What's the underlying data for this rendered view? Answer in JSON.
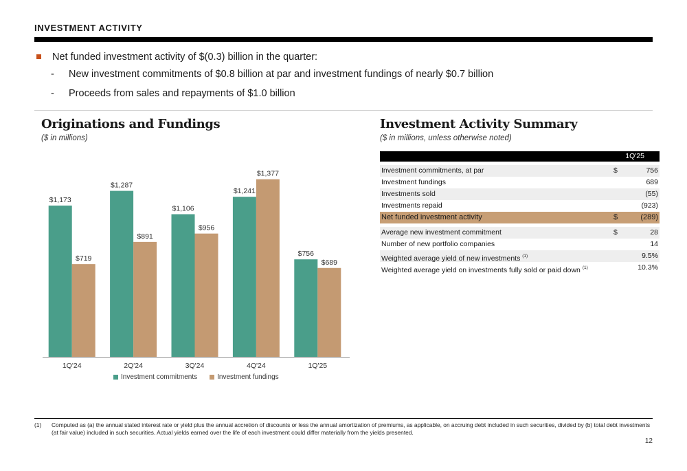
{
  "header": {
    "title": "INVESTMENT ACTIVITY"
  },
  "bullets": {
    "main": "Net funded investment activity of $(0.3) billion in the quarter:",
    "sub": [
      "New investment commitments of $0.8 billion at par and investment fundings of nearly $0.7 billion",
      "Proceeds from sales and repayments of $1.0 billion"
    ],
    "dash": "-"
  },
  "left_panel": {
    "title": "Originations and Fundings",
    "subtitle": "($ in millions)"
  },
  "right_panel": {
    "title": "Investment Activity Summary",
    "subtitle": "($ in millions, unless otherwise noted)"
  },
  "chart_data": {
    "type": "bar",
    "categories": [
      "1Q'24",
      "2Q'24",
      "3Q'24",
      "4Q'24",
      "1Q'25"
    ],
    "series": [
      {
        "name": "Investment commitments",
        "values": [
          1173,
          1287,
          1106,
          1241,
          756
        ],
        "labels": [
          "$1,173",
          "$1,287",
          "$1,106",
          "$1,241",
          "$756"
        ],
        "color": "#4a9e8a"
      },
      {
        "name": "Investment fundings",
        "values": [
          719,
          891,
          956,
          1377,
          689
        ],
        "labels": [
          "$719",
          "$891",
          "$956",
          "$1,377",
          "$689"
        ],
        "color": "#c49a72"
      }
    ],
    "ylim": [
      0,
      1450
    ],
    "grid": false,
    "legend": "bottom"
  },
  "table": {
    "column_header": "1Q'25",
    "rows": [
      {
        "label": "Investment commitments, at par",
        "dollar": "$",
        "value": "756",
        "shade": true
      },
      {
        "label": "Investment fundings",
        "dollar": "",
        "value": "689",
        "shade": false
      },
      {
        "label": "Investments sold",
        "dollar": "",
        "value": "(55)",
        "shade": true
      },
      {
        "label": "Investments repaid",
        "dollar": "",
        "value": "(923)",
        "shade": false
      },
      {
        "label": "Net funded investment activity",
        "dollar": "$",
        "value": "(289)",
        "highlight": true
      }
    ],
    "rows2": [
      {
        "label": "Average new investment commitment",
        "dollar": "$",
        "value": "28",
        "shade": true,
        "sup": ""
      },
      {
        "label": "Number of new portfolio companies",
        "dollar": "",
        "value": "14",
        "shade": false,
        "sup": ""
      },
      {
        "label": "Weighted average yield of new investments",
        "dollar": "",
        "value": "9.5%",
        "shade": true,
        "sup": "(1)"
      },
      {
        "label": "Weighted average yield on investments fully sold or paid down",
        "dollar": "",
        "value": "10.3%",
        "shade": false,
        "sup": "(1)"
      }
    ]
  },
  "footnote": {
    "mark": "(1)",
    "text": "Computed as (a) the annual stated interest rate or yield plus the annual accretion of discounts or less the annual amortization of premiums, as applicable, on accruing debt included in such securities, divided by (b) total debt investments (at fair value) included in such securities. Actual yields earned over the life of each investment could differ materially from the yields presented."
  },
  "page_number": "12"
}
